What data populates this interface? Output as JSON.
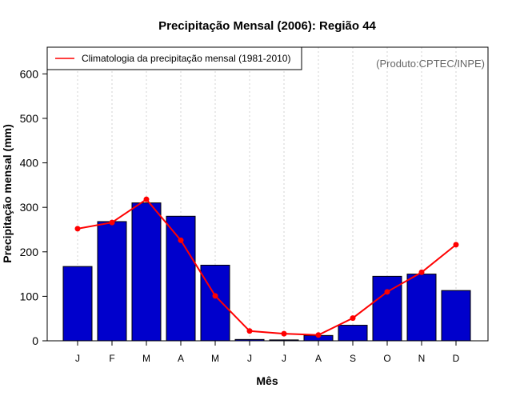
{
  "chart_data": {
    "type": "bar",
    "title": "Precipitação Mensal (2006): Região 44",
    "xlabel": "Mês",
    "ylabel": "Precipitação mensal (mm)",
    "categories": [
      "J",
      "F",
      "M",
      "A",
      "M",
      "J",
      "J",
      "A",
      "S",
      "O",
      "N",
      "D"
    ],
    "ylim": [
      0,
      660
    ],
    "yticks": [
      0,
      100,
      200,
      300,
      400,
      500,
      600
    ],
    "grid": "vertical dotted",
    "series": [
      {
        "name": "Precipitação mensal (2006)",
        "type": "bar",
        "values": [
          167,
          268,
          310,
          280,
          170,
          3,
          2,
          12,
          35,
          145,
          150,
          113
        ]
      },
      {
        "name": "Climatologia da precipitação mensal (1981-2010)",
        "type": "line",
        "values": [
          252,
          266,
          318,
          226,
          101,
          22,
          16,
          13,
          51,
          110,
          154,
          216
        ]
      }
    ],
    "legend": {
      "position": "top-left",
      "entries": [
        "Climatologia da precipitação mensal (1981-2010)"
      ]
    },
    "annotation": "(Produto:CPTEC/INPE)"
  },
  "colors": {
    "bar_fill": "#0000cc",
    "bar_stroke": "#000000",
    "line": "#ff0000",
    "grid": "#d3d3d3",
    "credit": "#666666"
  }
}
